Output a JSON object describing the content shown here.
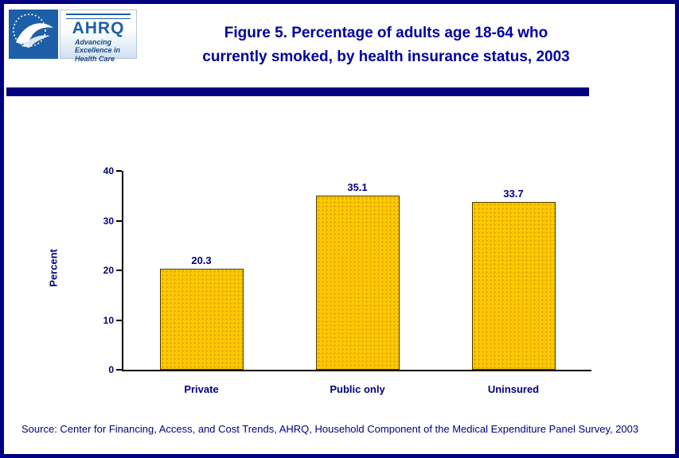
{
  "header": {
    "title_line1": "Figure 5. Percentage of adults age 18-64 who",
    "title_line2": "currently smoked, by health insurance status, 2003"
  },
  "logos": {
    "hhs_seal_name": "hhs-department-seal",
    "ahrq_acronym": "AHRQ",
    "ahrq_tagline_line1": "Advancing",
    "ahrq_tagline_line2": "Excellence in",
    "ahrq_tagline_line3": "Health Care"
  },
  "footer": {
    "source": "Source: Center for Financing, Access, and Cost Trends, AHRQ, Household Component of the Medical Expenditure Panel Survey, 2003"
  },
  "colors": {
    "navy": "#000080",
    "title_blue": "#0000A0",
    "bar_fill": "#FFC800",
    "bar_border": "#4A3F00",
    "hhs_blue": "#1C5FA8",
    "axis_black": "#000000"
  },
  "chart_data": {
    "type": "bar",
    "categories": [
      "Private",
      "Public only",
      "Uninsured"
    ],
    "values": [
      20.3,
      35.1,
      33.7
    ],
    "value_labels": [
      "20.3",
      "35.1",
      "33.7"
    ],
    "title": "Figure 5. Percentage of adults age 18-64 who currently smoked, by health insurance status, 2003",
    "xlabel": "",
    "ylabel": "Percent",
    "ylim": [
      0,
      40
    ],
    "yticks": [
      0,
      10,
      20,
      30,
      40
    ],
    "grid": false,
    "legend": "none"
  }
}
